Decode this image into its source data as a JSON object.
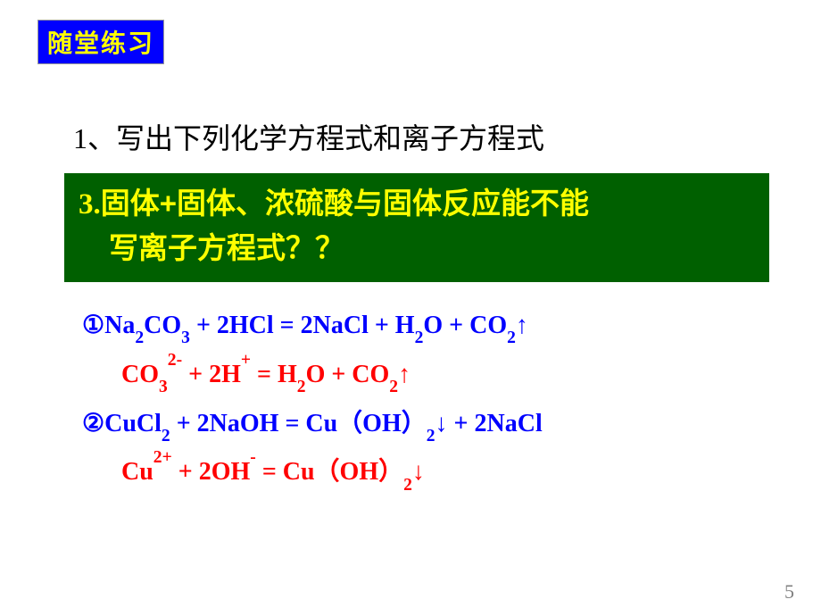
{
  "badge": {
    "text": "随堂练习",
    "bg": "#0000ff",
    "fg": "#ffff00"
  },
  "q1": "1、写出下列化学方程式和离子方程式",
  "greenBox": {
    "num": "3.",
    "line1": "固体+固体、浓硫酸与固体反应能不能",
    "line2": "写离子方程式？？",
    "bg": "#006000",
    "fg": "#ffff00"
  },
  "eqs": {
    "marker1": "①",
    "marker2": "②",
    "e1_blue": "Na<sub>2</sub>CO<sub>3</sub> + 2HCl = 2NaCl + H<sub>2</sub>O + CO<sub>2</sub>↑",
    "e1_red": "CO<sub>3</sub><sup>2-</sup> + 2H<sup>+</sup> = H<sub>2</sub>O + CO<sub>2</sub>↑",
    "e2_blue": "CuCl<sub>2</sub> + 2NaOH = Cu（OH）<sub>2</sub>↓ + 2NaCl",
    "e2_red": "Cu<sup>2+</sup> + 2OH<sup>-</sup> = Cu（OH）<sub>2</sub>↓",
    "blue": "#0000ff",
    "red": "#ff0000"
  },
  "pageNum": "5",
  "colors": {
    "pageNum": "#808080",
    "background": "#ffffff"
  },
  "fonts": {
    "body": "SimSun, Times New Roman, serif",
    "bold": "SimHei, SimSun, sans-serif"
  }
}
